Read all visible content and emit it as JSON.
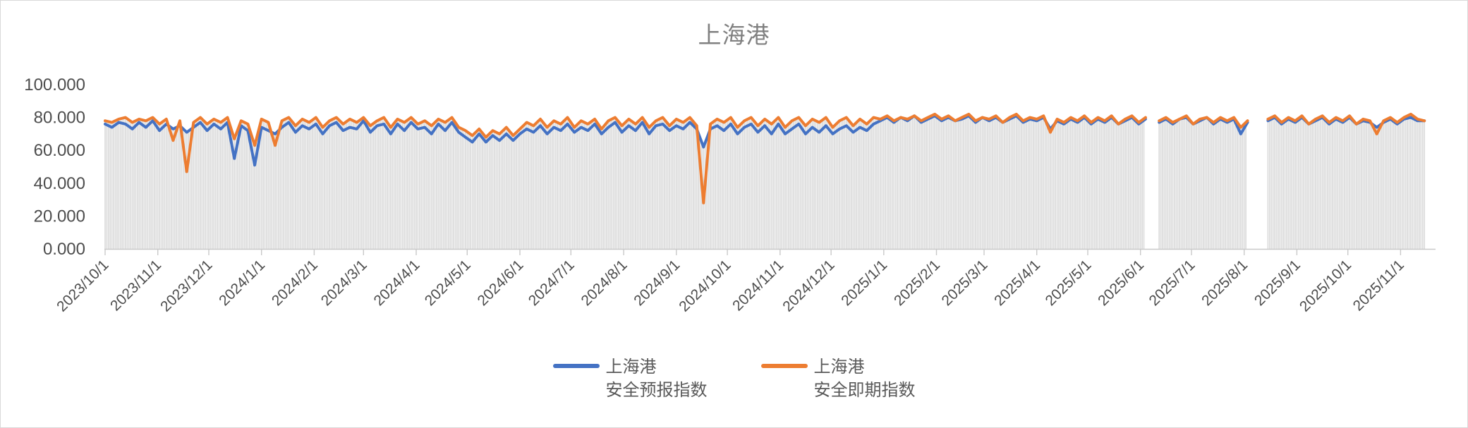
{
  "title": "上海港",
  "y_axis": {
    "tick_labels": [
      "100.000",
      "80.000",
      "60.000",
      "40.000",
      "20.000",
      "0.000"
    ],
    "min": 0,
    "max": 100
  },
  "x_axis": {
    "tick_labels": [
      "2023/10/1",
      "2023/11/1",
      "2023/12/1",
      "2024/1/1",
      "2024/2/1",
      "2024/3/1",
      "2024/4/1",
      "2024/5/1",
      "2024/6/1",
      "2024/7/1",
      "2024/8/1",
      "2024/9/1",
      "2024/10/1",
      "2024/11/1",
      "2024/12/1",
      "2025/1/1",
      "2025/2/1",
      "2025/3/1",
      "2025/4/1",
      "2025/5/1",
      "2025/6/1",
      "2025/7/1",
      "2025/8/1",
      "2025/9/1",
      "2025/10/1",
      "2025/11/1"
    ]
  },
  "legend": {
    "items": [
      {
        "line1": "上海港",
        "line2": "安全预报指数",
        "color": "#4472C4"
      },
      {
        "line1": "上海港",
        "line2": "安全即期指数",
        "color": "#ED7D31"
      }
    ]
  },
  "colors": {
    "series_forecast": "#4472C4",
    "series_spot": "#ED7D31",
    "axis_line": "#c9c9c9",
    "dropline": "#dbdbdb",
    "axis_label": "#4d4d4d",
    "title": "#808080"
  },
  "chart_data": {
    "type": "line",
    "title": "上海港",
    "xlabel": "",
    "ylabel": "",
    "ylim": [
      0,
      100
    ],
    "y_tick_interval": 20,
    "x_start": "2023/10/1",
    "x_step_days": 4,
    "x_end": "2025/11/15",
    "x_tick_labels": [
      "2023/10/1",
      "2023/11/1",
      "2023/12/1",
      "2024/1/1",
      "2024/2/1",
      "2024/3/1",
      "2024/4/1",
      "2024/5/1",
      "2024/6/1",
      "2024/7/1",
      "2024/8/1",
      "2024/9/1",
      "2024/10/1",
      "2024/11/1",
      "2024/12/1",
      "2025/1/1",
      "2025/2/1",
      "2025/3/1",
      "2025/4/1",
      "2025/5/1",
      "2025/6/1",
      "2025/7/1",
      "2025/8/1",
      "2025/9/1",
      "2025/10/1",
      "2025/11/1"
    ],
    "grid": "dense vertical droplines from each daily point to baseline, no horizontal gridlines",
    "legend_position": "bottom-center",
    "data_gaps": [
      "around 2025/6/8",
      "around 2025/8/5 - 2025/8/13"
    ],
    "notable_events": [
      {
        "date": "2023/11/18",
        "note": "spot index deep dip",
        "value": 47
      },
      {
        "date": "2023/12/16",
        "note": "forecast index dip",
        "value": 55
      },
      {
        "date": "2023/12/28",
        "note": "forecast index dip",
        "value": 51
      },
      {
        "date": "2024/9/17",
        "note": "spot index extreme dip",
        "value": 28
      },
      {
        "date": "2025/10/18",
        "note": "spot index dip",
        "value": 70
      }
    ],
    "series": [
      {
        "name": "上海港 安全预报指数",
        "color": "#4472C4",
        "values": [
          76,
          74,
          77,
          76,
          73,
          77,
          74,
          78,
          72,
          76,
          73,
          75,
          71,
          74,
          77,
          72,
          76,
          73,
          77,
          55,
          75,
          72,
          51,
          74,
          72,
          70,
          74,
          77,
          71,
          75,
          73,
          76,
          70,
          75,
          77,
          72,
          74,
          73,
          78,
          71,
          75,
          76,
          70,
          76,
          72,
          77,
          73,
          74,
          70,
          76,
          72,
          77,
          71,
          68,
          65,
          70,
          65,
          69,
          66,
          70,
          66,
          70,
          73,
          71,
          75,
          70,
          74,
          72,
          76,
          71,
          74,
          72,
          76,
          70,
          74,
          77,
          71,
          75,
          72,
          77,
          70,
          75,
          76,
          72,
          75,
          73,
          77,
          73,
          62,
          73,
          75,
          72,
          76,
          70,
          74,
          76,
          71,
          75,
          70,
          76,
          70,
          73,
          76,
          70,
          74,
          71,
          75,
          70,
          73,
          75,
          71,
          74,
          72,
          76,
          78,
          80,
          77,
          80,
          78,
          81,
          77,
          79,
          81,
          78,
          80,
          78,
          79,
          81,
          77,
          80,
          78,
          80,
          77,
          79,
          81,
          77,
          79,
          78,
          80,
          73,
          78,
          76,
          79,
          77,
          80,
          76,
          79,
          77,
          80,
          76,
          78,
          80,
          76,
          79,
          null,
          77,
          79,
          76,
          79,
          80,
          76,
          78,
          80,
          76,
          79,
          77,
          79,
          70,
          77,
          null,
          null,
          78,
          80,
          76,
          79,
          77,
          80,
          76,
          78,
          80,
          76,
          79,
          77,
          80,
          76,
          78,
          77,
          74,
          77,
          79,
          76,
          79,
          80,
          78,
          78
        ]
      },
      {
        "name": "上海港 安全即期指数",
        "color": "#ED7D31",
        "values": [
          78,
          77,
          79,
          80,
          77,
          79,
          78,
          80,
          76,
          79,
          66,
          78,
          47,
          77,
          80,
          76,
          79,
          77,
          80,
          67,
          78,
          76,
          63,
          79,
          77,
          63,
          78,
          80,
          75,
          79,
          77,
          80,
          74,
          78,
          80,
          76,
          79,
          77,
          80,
          75,
          78,
          80,
          74,
          79,
          77,
          80,
          76,
          78,
          75,
          79,
          77,
          80,
          74,
          72,
          69,
          73,
          68,
          72,
          70,
          74,
          69,
          73,
          77,
          75,
          79,
          74,
          78,
          76,
          80,
          74,
          78,
          76,
          79,
          73,
          78,
          80,
          75,
          79,
          76,
          80,
          74,
          78,
          80,
          75,
          79,
          77,
          80,
          75,
          28,
          76,
          79,
          77,
          80,
          74,
          78,
          80,
          75,
          79,
          76,
          80,
          74,
          78,
          80,
          75,
          79,
          77,
          80,
          74,
          78,
          80,
          75,
          79,
          76,
          80,
          79,
          81,
          78,
          80,
          79,
          81,
          78,
          80,
          82,
          79,
          81,
          78,
          80,
          82,
          78,
          80,
          79,
          81,
          77,
          80,
          82,
          78,
          80,
          79,
          81,
          71,
          79,
          77,
          80,
          78,
          81,
          77,
          80,
          78,
          81,
          76,
          79,
          81,
          77,
          80,
          null,
          78,
          80,
          77,
          79,
          81,
          76,
          79,
          80,
          77,
          80,
          78,
          80,
          74,
          78,
          null,
          null,
          79,
          81,
          77,
          80,
          78,
          81,
          76,
          79,
          81,
          77,
          80,
          78,
          81,
          76,
          79,
          78,
          70,
          78,
          80,
          77,
          80,
          82,
          79,
          78
        ]
      }
    ]
  }
}
